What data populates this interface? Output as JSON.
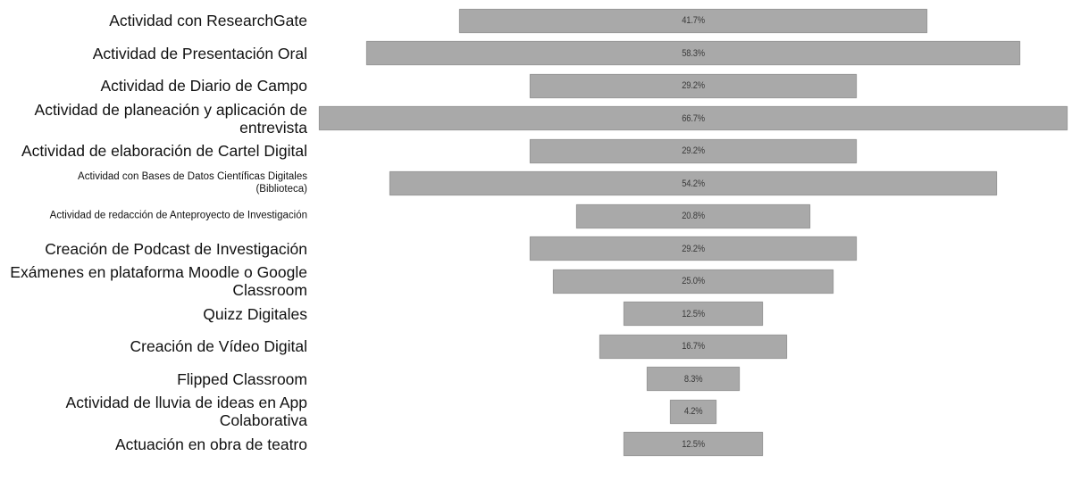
{
  "chart_data": {
    "type": "bar",
    "orientation": "horizontal-centered",
    "title": "",
    "xlabel": "",
    "ylabel": "",
    "bar_color": "#a9a9a9",
    "categories": [
      "Actividad con ResearchGate",
      "Actividad de Presentación Oral",
      "Actividad de Diario de Campo",
      "Actividad de planeación y aplicación de\nentrevista",
      "Actividad de elaboración de Cartel Digital",
      "Actividad con Bases de Datos Científicas Digitales\n(Biblioteca)",
      "Actividad de redacción de Anteproyecto de Investigación",
      "Creación de Podcast de Investigación",
      "Exámenes en plataforma Moodle o Google\nClassroom",
      "Quizz Digitales",
      "Creación de Vídeo Digital",
      "Flipped Classroom",
      "Actividad de lluvia de ideas en App\nColaborativa",
      "Actuación en obra de teatro"
    ],
    "values": [
      41.7,
      58.3,
      29.2,
      66.7,
      29.2,
      54.2,
      20.8,
      29.2,
      25.0,
      12.5,
      16.7,
      8.3,
      4.2,
      12.5
    ],
    "value_labels": [
      "41.7%",
      "58.3%",
      "29.2%",
      "66.7%",
      "29.2%",
      "54.2%",
      "20.8%",
      "29.2%",
      "25.0%",
      "12.5%",
      "16.7%",
      "8.3%",
      "4.2%",
      "12.5%"
    ],
    "label_sizes": [
      "big",
      "big",
      "big",
      "big",
      "big",
      "small",
      "small",
      "big",
      "big",
      "big",
      "big",
      "big",
      "big",
      "big"
    ]
  }
}
